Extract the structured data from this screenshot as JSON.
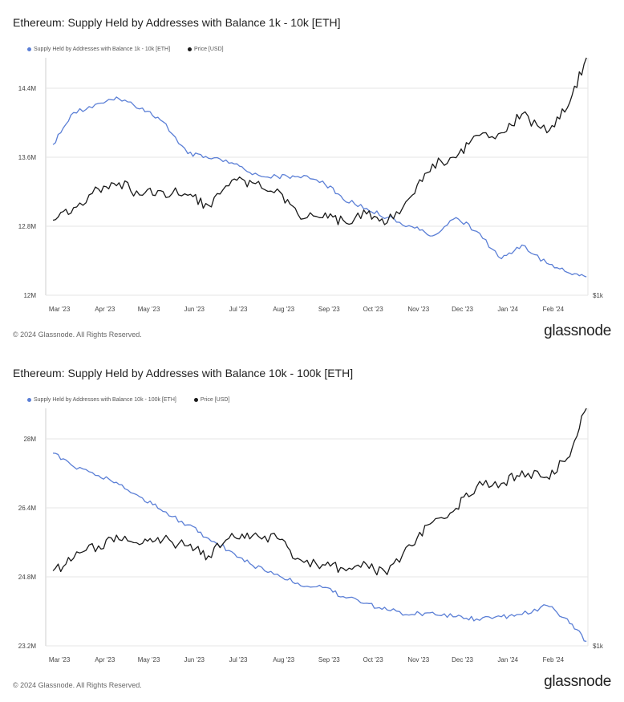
{
  "colors": {
    "supply": "#5b7fd6",
    "price": "#1a1a1a",
    "grid": "#e6e6e6"
  },
  "brand": {
    "logo": "glassnode",
    "copyright": "© 2024 Glassnode. All Rights Reserved."
  },
  "chart_data": [
    {
      "type": "line",
      "title": "Ethereum: Supply Held by Addresses with Balance 1k - 10k [ETH]",
      "x_ticks": [
        "Mar '23",
        "Apr '23",
        "May '23",
        "Jun '23",
        "Jul '23",
        "Aug '23",
        "Sep '23",
        "Oct '23",
        "Nov '23",
        "Dec '23",
        "Jan '24",
        "Feb '24"
      ],
      "y_ticks": [
        "14.4M",
        "13.6M",
        "12.8M",
        "12M"
      ],
      "y_right_label": "$1k",
      "ylim": [
        12000000,
        14600000
      ],
      "price_ylim": [
        1000,
        2900
      ],
      "x": [
        "2023-03-01",
        "2023-03-15",
        "2023-04-01",
        "2023-04-15",
        "2023-05-01",
        "2023-05-15",
        "2023-06-01",
        "2023-06-15",
        "2023-07-01",
        "2023-07-15",
        "2023-08-01",
        "2023-08-15",
        "2023-09-01",
        "2023-09-15",
        "2023-10-01",
        "2023-10-15",
        "2023-11-01",
        "2023-11-15",
        "2023-12-01",
        "2023-12-15",
        "2024-01-01",
        "2024-01-15",
        "2024-02-01",
        "2024-02-15",
        "2024-02-28"
      ],
      "series": [
        {
          "name": "Supply Held by Addresses with Balance 1k - 10k [ETH]",
          "axis": "left",
          "values": [
            13650000,
            14000000,
            14100000,
            14150000,
            14050000,
            13900000,
            13550000,
            13500000,
            13450000,
            13320000,
            13300000,
            13300000,
            13250000,
            13050000,
            12950000,
            12850000,
            12750000,
            12650000,
            12850000,
            12700000,
            12400000,
            12550000,
            12350000,
            12250000,
            12200000
          ]
        },
        {
          "name": "Price [USD]",
          "axis": "right",
          "values": [
            1600,
            1700,
            1850,
            1900,
            1800,
            1830,
            1800,
            1720,
            1920,
            1900,
            1850,
            1650,
            1620,
            1600,
            1650,
            1580,
            1800,
            2050,
            2100,
            2280,
            2300,
            2450,
            2300,
            2500,
            2900
          ]
        }
      ]
    },
    {
      "type": "line",
      "title": "Ethereum: Supply Held by Addresses with Balance 10k - 100k [ETH]",
      "x_ticks": [
        "Mar '23",
        "Apr '23",
        "May '23",
        "Jun '23",
        "Jul '23",
        "Aug '23",
        "Sep '23",
        "Oct '23",
        "Nov '23",
        "Dec '23",
        "Jan '24",
        "Feb '24"
      ],
      "y_ticks": [
        "28M",
        "26.4M",
        "24.8M",
        "23.2M"
      ],
      "y_right_label": "$1k",
      "ylim": [
        23200000,
        28500000
      ],
      "price_ylim": [
        1000,
        2900
      ],
      "x": [
        "2023-03-01",
        "2023-03-15",
        "2023-04-01",
        "2023-04-15",
        "2023-05-01",
        "2023-05-15",
        "2023-06-01",
        "2023-06-15",
        "2023-07-01",
        "2023-07-15",
        "2023-08-01",
        "2023-08-15",
        "2023-09-01",
        "2023-09-15",
        "2023-10-01",
        "2023-10-15",
        "2023-11-01",
        "2023-11-15",
        "2023-12-01",
        "2023-12-15",
        "2024-01-01",
        "2024-01-15",
        "2024-02-01",
        "2024-02-15",
        "2024-02-28"
      ],
      "series": [
        {
          "name": "Supply Held by Addresses with Balance 10k - 100k [ETH]",
          "axis": "left",
          "values": [
            27500000,
            27200000,
            27000000,
            26800000,
            26500000,
            26200000,
            25900000,
            25600000,
            25300000,
            25000000,
            24800000,
            24600000,
            24500000,
            24300000,
            24150000,
            24000000,
            23900000,
            23950000,
            23850000,
            23800000,
            23850000,
            23900000,
            24100000,
            23800000,
            23300000
          ]
        },
        {
          "name": "Price [USD]",
          "axis": "right",
          "values": [
            1600,
            1700,
            1800,
            1850,
            1820,
            1850,
            1800,
            1720,
            1900,
            1880,
            1860,
            1700,
            1650,
            1620,
            1650,
            1570,
            1800,
            1990,
            2100,
            2270,
            2300,
            2400,
            2350,
            2500,
            2900
          ]
        }
      ]
    }
  ]
}
